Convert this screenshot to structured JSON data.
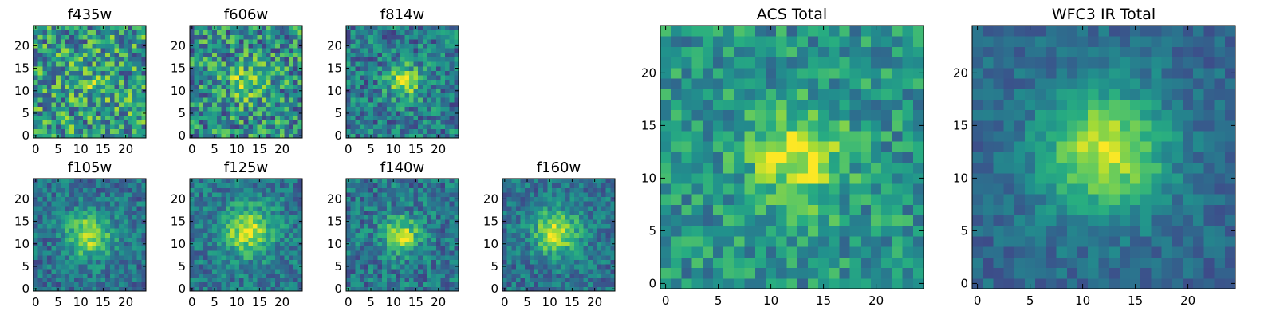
{
  "chart_data": [
    {
      "type": "heatmap",
      "title": "f435w",
      "xticks": [
        "0",
        "5",
        "10",
        "15",
        "20"
      ],
      "yticks": [
        "0",
        "5",
        "10",
        "15",
        "20"
      ],
      "xlim": [
        0,
        25
      ],
      "ylim": [
        0,
        25
      ],
      "grid": false,
      "colormap": "viridis",
      "source_peak": [
        12,
        12
      ],
      "source_sigma": 3.0,
      "source_amp": 0.12,
      "noise": 0.34,
      "background": 0.55,
      "noise_seed": 11
    },
    {
      "type": "heatmap",
      "title": "f606w",
      "xticks": [
        "0",
        "5",
        "10",
        "15",
        "20"
      ],
      "yticks": [
        "0",
        "5",
        "10",
        "15",
        "20"
      ],
      "xlim": [
        0,
        25
      ],
      "ylim": [
        0,
        25
      ],
      "grid": false,
      "colormap": "viridis",
      "source_peak": [
        12.5,
        12
      ],
      "source_sigma": 3.0,
      "source_amp": 0.3,
      "noise": 0.32,
      "background": 0.5,
      "noise_seed": 23
    },
    {
      "type": "heatmap",
      "title": "f814w",
      "xticks": [
        "0",
        "5",
        "10",
        "15",
        "20"
      ],
      "yticks": [
        "0",
        "5",
        "10",
        "15",
        "20"
      ],
      "xlim": [
        0,
        25
      ],
      "ylim": [
        0,
        25
      ],
      "grid": false,
      "colormap": "viridis",
      "source_peak": [
        12.5,
        12
      ],
      "source_sigma": 2.6,
      "source_amp": 0.48,
      "noise": 0.24,
      "background": 0.42,
      "noise_seed": 37
    },
    {
      "type": "heatmap",
      "title": "f105w",
      "xticks": [
        "0",
        "5",
        "10",
        "15",
        "20"
      ],
      "yticks": [
        "0",
        "5",
        "10",
        "15",
        "20"
      ],
      "xlim": [
        0,
        25
      ],
      "ylim": [
        0,
        25
      ],
      "grid": false,
      "colormap": "viridis",
      "source_peak": [
        12,
        12
      ],
      "source_sigma": 3.6,
      "source_amp": 0.5,
      "noise": 0.18,
      "background": 0.38,
      "noise_seed": 41
    },
    {
      "type": "heatmap",
      "title": "f125w",
      "xticks": [
        "0",
        "5",
        "10",
        "15",
        "20"
      ],
      "yticks": [
        "0",
        "5",
        "10",
        "15",
        "20"
      ],
      "xlim": [
        0,
        25
      ],
      "ylim": [
        0,
        25
      ],
      "grid": false,
      "colormap": "viridis",
      "source_peak": [
        12.5,
        13
      ],
      "source_sigma": 4.0,
      "source_amp": 0.5,
      "noise": 0.18,
      "background": 0.4,
      "noise_seed": 53
    },
    {
      "type": "heatmap",
      "title": "f140w",
      "xticks": [
        "0",
        "5",
        "10",
        "15",
        "20"
      ],
      "yticks": [
        "0",
        "5",
        "10",
        "15",
        "20"
      ],
      "xlim": [
        0,
        25
      ],
      "ylim": [
        0,
        25
      ],
      "grid": false,
      "colormap": "viridis",
      "source_peak": [
        12,
        12
      ],
      "source_sigma": 2.8,
      "source_amp": 0.5,
      "noise": 0.2,
      "background": 0.4,
      "noise_seed": 67
    },
    {
      "type": "heatmap",
      "title": "f160w",
      "xticks": [
        "0",
        "5",
        "10",
        "15",
        "20"
      ],
      "yticks": [
        "0",
        "5",
        "10",
        "15",
        "20"
      ],
      "xlim": [
        0,
        25
      ],
      "ylim": [
        0,
        25
      ],
      "grid": false,
      "colormap": "viridis",
      "source_peak": [
        11.5,
        12.5
      ],
      "source_sigma": 3.6,
      "source_amp": 0.55,
      "noise": 0.17,
      "background": 0.38,
      "noise_seed": 79
    },
    {
      "type": "heatmap",
      "title": "ACS Total",
      "xticks": [
        "0",
        "5",
        "10",
        "15",
        "20"
      ],
      "yticks": [
        "0",
        "5",
        "10",
        "15",
        "20"
      ],
      "xlim": [
        0,
        25
      ],
      "ylim": [
        0,
        25
      ],
      "grid": false,
      "colormap": "viridis",
      "source_peak": [
        12.5,
        12
      ],
      "source_sigma": 3.2,
      "source_amp": 0.42,
      "noise": 0.2,
      "background": 0.52,
      "noise_seed": 97
    },
    {
      "type": "heatmap",
      "title": "WFC3 IR Total",
      "xticks": [
        "0",
        "5",
        "10",
        "15",
        "20"
      ],
      "yticks": [
        "0",
        "5",
        "10",
        "15",
        "20"
      ],
      "xlim": [
        0,
        25
      ],
      "ylim": [
        0,
        25
      ],
      "grid": false,
      "colormap": "viridis",
      "source_peak": [
        12,
        12.5
      ],
      "source_sigma": 4.2,
      "source_amp": 0.58,
      "noise": 0.11,
      "background": 0.34,
      "noise_seed": 131
    }
  ]
}
